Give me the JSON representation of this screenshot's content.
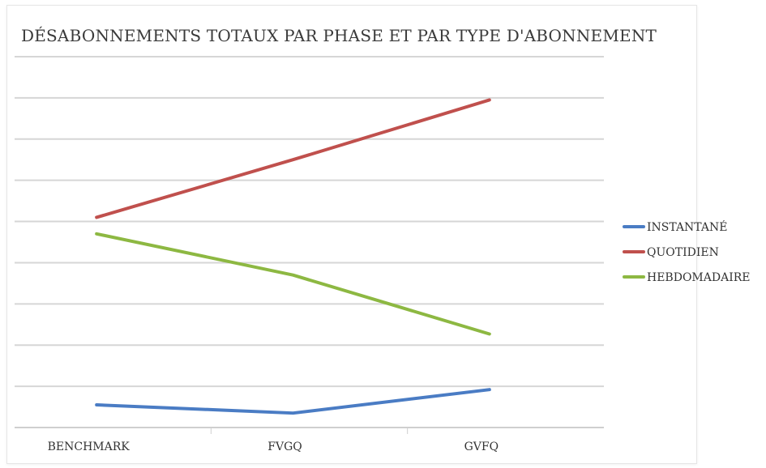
{
  "chart_data": {
    "type": "line",
    "title": "DÉSABONNEMENTS TOTAUX PAR PHASE ET PAR TYPE D'ABONNEMENT",
    "categories": [
      "BENCHMARK",
      "FVGQ",
      "GVFQ"
    ],
    "ylim": [
      0,
      9
    ],
    "grid": true,
    "legend_position": "right",
    "series": [
      {
        "name": "INSTANTANÉ",
        "color": "#4a7cc4",
        "values": [
          0.55,
          0.35,
          0.92
        ]
      },
      {
        "name": "QUOTIDIEN",
        "color": "#c0504d",
        "values": [
          5.1,
          6.5,
          7.95
        ]
      },
      {
        "name": "HEBDOMADAIRE",
        "color": "#8db842",
        "values": [
          4.7,
          3.7,
          2.27
        ]
      }
    ]
  }
}
